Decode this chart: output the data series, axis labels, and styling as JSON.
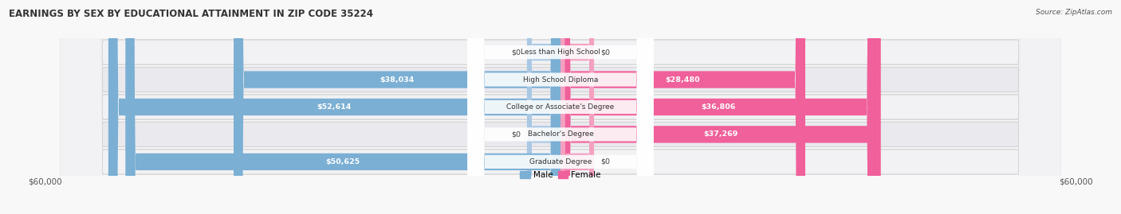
{
  "title": "EARNINGS BY SEX BY EDUCATIONAL ATTAINMENT IN ZIP CODE 35224",
  "source": "Source: ZipAtlas.com",
  "categories": [
    "Less than High School",
    "High School Diploma",
    "College or Associate's Degree",
    "Bachelor's Degree",
    "Graduate Degree"
  ],
  "male_values": [
    0,
    38034,
    52614,
    0,
    50625
  ],
  "female_values": [
    0,
    28480,
    36806,
    37269,
    0
  ],
  "male_color": "#7bafd4",
  "male_color_light": "#aac8e4",
  "female_color": "#f0609a",
  "female_color_light": "#f4a0c0",
  "max_value": 60000,
  "axis_label_left": "$60,000",
  "axis_label_right": "$60,000",
  "legend_male": "Male",
  "legend_female": "Female",
  "row_bg_even": "#efefef",
  "row_bg_odd": "#e6e6e6",
  "title_fontsize": 8.5,
  "bar_height": 0.62,
  "zero_stub_ratio": 0.065
}
